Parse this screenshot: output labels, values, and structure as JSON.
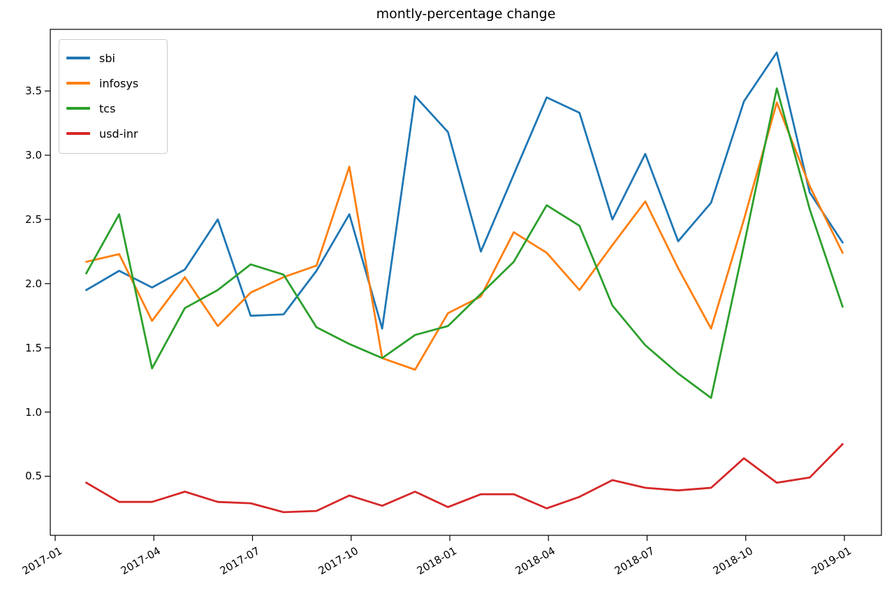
{
  "figure": {
    "title": "montly-percentage change"
  },
  "chart_data": {
    "type": "line",
    "title": "montly-percentage change",
    "xlabel": "",
    "ylabel": "",
    "grid": false,
    "legend_position": "upper left",
    "x": [
      "2017-01",
      "2017-02",
      "2017-03",
      "2017-04",
      "2017-05",
      "2017-06",
      "2017-07",
      "2017-08",
      "2017-09",
      "2017-10",
      "2017-11",
      "2017-12",
      "2018-01",
      "2018-02",
      "2018-03",
      "2018-04",
      "2018-05",
      "2018-06",
      "2018-07",
      "2018-08",
      "2018-09",
      "2018-10",
      "2018-11",
      "2018-12"
    ],
    "x_tick_labels": [
      "2017-01",
      "2017-04",
      "2017-07",
      "2017-10",
      "2018-01",
      "2018-04",
      "2018-07",
      "2018-10",
      "2019-01"
    ],
    "y_ticks": [
      0.5,
      1.0,
      1.5,
      2.0,
      2.5,
      3.0,
      3.5
    ],
    "ylim": [
      0.04,
      3.98
    ],
    "series": [
      {
        "name": "sbi",
        "color": "#1f77b4",
        "values": [
          1.95,
          2.1,
          1.97,
          2.11,
          2.5,
          1.75,
          1.76,
          2.1,
          2.54,
          1.65,
          3.46,
          3.18,
          2.25,
          2.85,
          3.45,
          3.33,
          2.5,
          3.01,
          2.33,
          2.63,
          3.42,
          3.8,
          2.71,
          2.32
        ]
      },
      {
        "name": "infosys",
        "color": "#ff7f0e",
        "values": [
          2.17,
          2.23,
          1.71,
          2.05,
          1.67,
          1.93,
          2.05,
          2.14,
          2.91,
          1.42,
          1.33,
          1.77,
          1.9,
          2.4,
          2.24,
          1.95,
          2.3,
          2.64,
          2.12,
          1.65,
          2.5,
          3.41,
          2.76,
          2.24
        ]
      },
      {
        "name": "tcs",
        "color": "#2ca02c",
        "values": [
          2.08,
          2.54,
          1.34,
          1.81,
          1.95,
          2.15,
          2.07,
          1.66,
          1.53,
          1.42,
          1.6,
          1.67,
          1.92,
          2.17,
          2.61,
          2.45,
          1.83,
          1.52,
          1.3,
          1.11,
          2.3,
          3.52,
          2.58,
          1.82
        ]
      },
      {
        "name": "usd-inr",
        "color": "#d62728",
        "values": [
          0.45,
          0.3,
          0.3,
          0.38,
          0.3,
          0.29,
          0.22,
          0.23,
          0.35,
          0.27,
          0.38,
          0.26,
          0.36,
          0.36,
          0.25,
          0.34,
          0.47,
          0.41,
          0.39,
          0.41,
          0.64,
          0.45,
          0.49,
          0.75
        ]
      }
    ]
  }
}
